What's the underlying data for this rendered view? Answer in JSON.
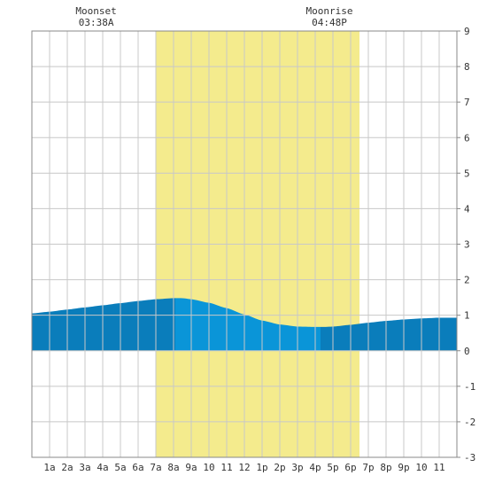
{
  "chart_data": {
    "type": "area",
    "title": "",
    "xlabel": "",
    "ylabel": "",
    "x_tick_labels": [
      "1a",
      "2a",
      "3a",
      "4a",
      "5a",
      "6a",
      "7a",
      "8a",
      "9a",
      "10",
      "11",
      "12",
      "1p",
      "2p",
      "3p",
      "4p",
      "5p",
      "6p",
      "7p",
      "8p",
      "9p",
      "10",
      "11"
    ],
    "ylim": [
      -3,
      9
    ],
    "xlim_hours": [
      0,
      24
    ],
    "y_ticks": [
      -3,
      -2,
      -1,
      0,
      1,
      2,
      3,
      4,
      5,
      6,
      7,
      8,
      9
    ],
    "grid": true,
    "daylight_band_hours": [
      7,
      18.5
    ],
    "moon_events": [
      {
        "label": "Moonset",
        "time": "03:38A",
        "hour": 3.63
      },
      {
        "label": "Moonrise",
        "time": "04:48P",
        "hour": 16.8
      }
    ],
    "series": [
      {
        "x": [
          0,
          1,
          2,
          3,
          4,
          5,
          6,
          7,
          8,
          8.5,
          9,
          10,
          11,
          12,
          13,
          14,
          15,
          16,
          16.5,
          17,
          18,
          19,
          20,
          21,
          22,
          23,
          24
        ],
        "values": [
          1.05,
          1.1,
          1.16,
          1.22,
          1.28,
          1.34,
          1.4,
          1.45,
          1.48,
          1.48,
          1.45,
          1.35,
          1.2,
          1.02,
          0.85,
          0.74,
          0.68,
          0.67,
          0.67,
          0.68,
          0.73,
          0.79,
          0.84,
          0.88,
          0.91,
          0.93,
          0.93
        ]
      }
    ],
    "shading_segments": [
      {
        "from": 0,
        "to": 8.1,
        "tone": "dark"
      },
      {
        "from": 8.1,
        "to": 16.3,
        "tone": "light"
      },
      {
        "from": 16.3,
        "to": 24,
        "tone": "dark"
      }
    ],
    "colors": {
      "daylight": "#f4eb8d",
      "tide_dark": "#0a7dbb",
      "tide_light": "#0a95d8",
      "grid": "#c8c8c8",
      "frame": "#888888",
      "text": "#333333"
    }
  }
}
